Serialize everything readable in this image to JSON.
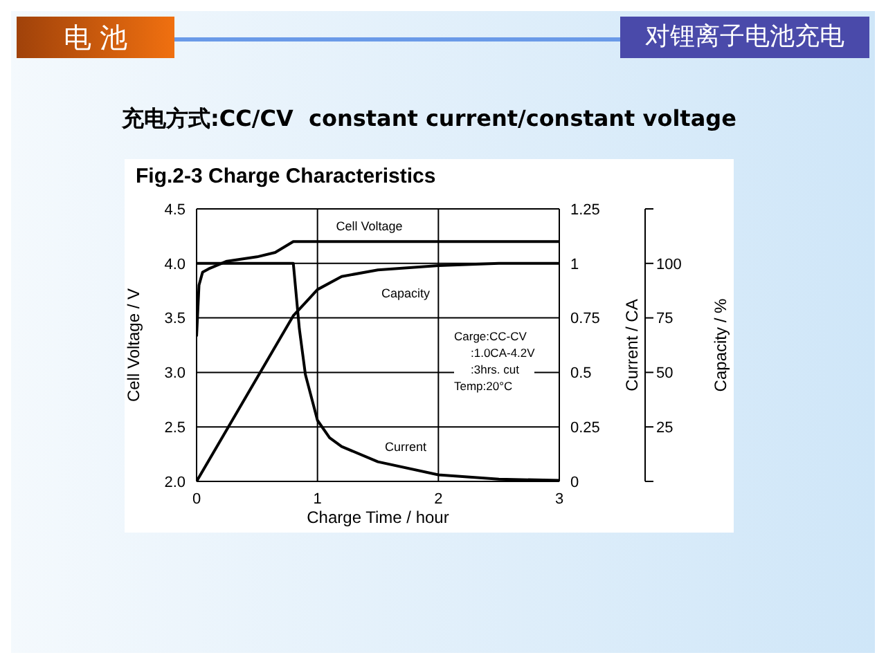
{
  "chart_data": {
    "type": "line",
    "title": "Fig.2-3  Charge Characteristics",
    "subtitle": "充电方式:CC/CV  constant current/constant voltage",
    "xlabel": "Charge Time / hour",
    "ylabel": "Cell Voltage / V",
    "y2label": "Current / CA",
    "y3label": "Capacity / %",
    "annotations": [
      "电 池",
      "对锂离子电池充电",
      "Carge:CC-CV",
      ":1.0CA-4.2V",
      ":3hrs. cut",
      "Temp:20°C"
    ],
    "xlim": [
      0,
      3
    ],
    "xticks": [
      0,
      1,
      2,
      3
    ],
    "ylim": [
      2,
      4.5
    ],
    "yticks": [
      {
        "value": 2,
        "label": "2.0"
      },
      2.5,
      {
        "value": 3,
        "label": "3.0"
      },
      3.5,
      {
        "value": 4,
        "label": "4.0"
      },
      4.5
    ],
    "y2lim": [
      0,
      1.25
    ],
    "y2ticks": [
      0,
      0.25,
      0.5,
      0.75,
      1,
      1.25
    ],
    "y3lim": [
      0,
      125
    ],
    "y3ticks": [
      {
        "value": 0,
        "label": null
      },
      25,
      50,
      75,
      100,
      {
        "value": 125,
        "label": null
      }
    ],
    "grid": true,
    "marker": "none",
    "line_style": "solid",
    "series": [
      {
        "name": "Cell Voltage",
        "color": "#000000",
        "axis": "y",
        "x": [
          0,
          0.02,
          0.05,
          0.1,
          0.25,
          0.5,
          0.65,
          0.8,
          1.2,
          2,
          3
        ],
        "values": [
          3.33,
          3.8,
          3.92,
          3.95,
          4.02,
          4.06,
          4.1,
          4.2,
          4.2,
          4.2,
          4.2
        ]
      },
      {
        "name": "Capacity",
        "color": "#000000",
        "axis": "y3",
        "x": [
          0,
          0.4,
          0.8,
          0.9,
          1,
          1.2,
          1.5,
          2,
          2.5,
          3
        ],
        "values": [
          0,
          38,
          76,
          82,
          88,
          94,
          97,
          99,
          100,
          100
        ]
      },
      {
        "name": "Current",
        "color": "#000000",
        "axis": "y2",
        "x": [
          0,
          0.8,
          0.85,
          0.9,
          1,
          1.1,
          1.2,
          1.5,
          2,
          2.5,
          3
        ],
        "values": [
          1,
          1,
          0.7,
          0.49,
          0.28,
          0.2,
          0.16,
          0.09,
          0.03,
          0.01,
          0.005
        ]
      }
    ]
  }
}
